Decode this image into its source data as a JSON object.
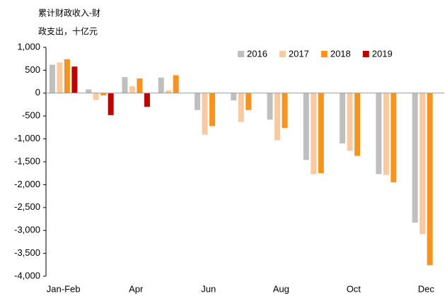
{
  "chart_data": {
    "type": "bar",
    "title": [
      "累计财政收入-财",
      "政支出，十亿元"
    ],
    "categories": [
      "Jan-Feb",
      null,
      "Apr",
      null,
      "Jun",
      null,
      "Aug",
      null,
      "Oct",
      null,
      "Dec"
    ],
    "series": [
      {
        "name": "2016",
        "color": "#bfbfbf",
        "values": [
          620,
          80,
          350,
          340,
          -370,
          -160,
          -580,
          -1460,
          -1100,
          -1770,
          -2830
        ]
      },
      {
        "name": "2017",
        "color": "#f9c9a0",
        "values": [
          670,
          -150,
          150,
          60,
          -910,
          -630,
          -1030,
          -1770,
          -1260,
          -1790,
          -3080
        ]
      },
      {
        "name": "2018",
        "color": "#f7931e",
        "values": [
          740,
          -50,
          320,
          390,
          -720,
          -370,
          -760,
          -1750,
          -1370,
          -1950,
          -3760
        ]
      },
      {
        "name": "2019",
        "color": "#c00000",
        "values": [
          580,
          -480,
          -300,
          null,
          null,
          null,
          null,
          null,
          null,
          null,
          null
        ]
      }
    ],
    "ylim": [
      -4000,
      1000
    ],
    "yticks": [
      {
        "value": 1000,
        "label": "1,000"
      },
      500,
      0,
      -500,
      {
        "value": -1000,
        "label": "-1,000"
      },
      {
        "value": -1500,
        "label": "-1,500"
      },
      {
        "value": -2000,
        "label": "-2,000"
      },
      {
        "value": -2500,
        "label": "-2,500"
      },
      {
        "value": -3000,
        "label": "-3,000"
      },
      {
        "value": -3500,
        "label": "-3,500"
      },
      {
        "value": -4000,
        "label": "-4,000"
      }
    ],
    "legend": "top-right"
  }
}
